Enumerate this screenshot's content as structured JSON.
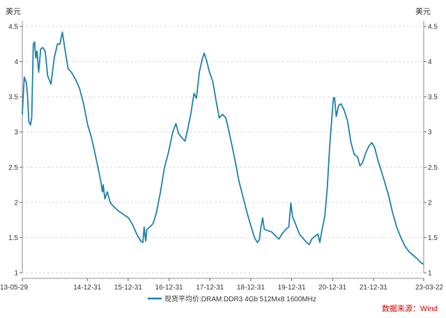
{
  "chart_data": {
    "type": "line",
    "unit_left": "美元",
    "unit_right": "美元",
    "ylim": [
      1,
      4.5
    ],
    "y_ticks": [
      "1",
      "1.5",
      "2",
      "2.5",
      "3",
      "3.5",
      "4",
      "4.5"
    ],
    "x_ticks": [
      {
        "t": 0.0,
        "label": "13-05-29"
      },
      {
        "t": 1.59,
        "label": "14-12-31"
      },
      {
        "t": 2.59,
        "label": "15-12-31"
      },
      {
        "t": 3.59,
        "label": "16-12-31"
      },
      {
        "t": 4.59,
        "label": "17-12-31"
      },
      {
        "t": 5.59,
        "label": "18-12-31"
      },
      {
        "t": 6.59,
        "label": "19-12-31"
      },
      {
        "t": 7.59,
        "label": "20-12-31"
      },
      {
        "t": 8.59,
        "label": "21-12-31"
      },
      {
        "t": 9.82,
        "label": "23-03-22"
      }
    ],
    "series": [
      {
        "name": "现货平均价:DRAM:DDR3 4Gb 512Mx8 1600MHz",
        "color": "#1a7fa8",
        "points": [
          [
            0.0,
            3.25
          ],
          [
            0.03,
            3.6
          ],
          [
            0.05,
            3.78
          ],
          [
            0.1,
            3.7
          ],
          [
            0.13,
            3.5
          ],
          [
            0.16,
            3.15
          ],
          [
            0.2,
            3.1
          ],
          [
            0.23,
            3.2
          ],
          [
            0.27,
            4.25
          ],
          [
            0.3,
            4.28
          ],
          [
            0.33,
            4.05
          ],
          [
            0.36,
            4.15
          ],
          [
            0.4,
            3.85
          ],
          [
            0.45,
            4.18
          ],
          [
            0.5,
            4.2
          ],
          [
            0.56,
            4.15
          ],
          [
            0.62,
            3.8
          ],
          [
            0.7,
            3.68
          ],
          [
            0.78,
            4.05
          ],
          [
            0.86,
            4.25
          ],
          [
            0.92,
            4.25
          ],
          [
            0.98,
            4.42
          ],
          [
            1.05,
            4.15
          ],
          [
            1.12,
            3.9
          ],
          [
            1.2,
            3.85
          ],
          [
            1.3,
            3.75
          ],
          [
            1.4,
            3.62
          ],
          [
            1.5,
            3.4
          ],
          [
            1.6,
            3.1
          ],
          [
            1.68,
            2.95
          ],
          [
            1.76,
            2.75
          ],
          [
            1.85,
            2.5
          ],
          [
            1.92,
            2.3
          ],
          [
            1.96,
            2.15
          ],
          [
            1.98,
            2.25
          ],
          [
            2.02,
            2.05
          ],
          [
            2.08,
            2.15
          ],
          [
            2.15,
            2.0
          ],
          [
            2.22,
            1.95
          ],
          [
            2.35,
            1.88
          ],
          [
            2.5,
            1.82
          ],
          [
            2.6,
            1.78
          ],
          [
            2.7,
            1.68
          ],
          [
            2.8,
            1.55
          ],
          [
            2.9,
            1.45
          ],
          [
            2.95,
            1.43
          ],
          [
            2.98,
            1.65
          ],
          [
            3.02,
            1.45
          ],
          [
            3.05,
            1.62
          ],
          [
            3.12,
            1.65
          ],
          [
            3.2,
            1.7
          ],
          [
            3.28,
            1.85
          ],
          [
            3.38,
            2.15
          ],
          [
            3.48,
            2.5
          ],
          [
            3.58,
            2.72
          ],
          [
            3.68,
            3.0
          ],
          [
            3.76,
            3.12
          ],
          [
            3.82,
            2.98
          ],
          [
            3.9,
            2.92
          ],
          [
            3.98,
            2.87
          ],
          [
            4.05,
            3.05
          ],
          [
            4.12,
            3.25
          ],
          [
            4.2,
            3.55
          ],
          [
            4.26,
            3.48
          ],
          [
            4.33,
            3.85
          ],
          [
            4.4,
            4.03
          ],
          [
            4.45,
            4.12
          ],
          [
            4.5,
            4.03
          ],
          [
            4.58,
            3.85
          ],
          [
            4.66,
            3.72
          ],
          [
            4.74,
            3.45
          ],
          [
            4.82,
            3.2
          ],
          [
            4.9,
            3.25
          ],
          [
            4.98,
            3.2
          ],
          [
            5.06,
            3.0
          ],
          [
            5.14,
            2.78
          ],
          [
            5.22,
            2.55
          ],
          [
            5.3,
            2.3
          ],
          [
            5.4,
            2.08
          ],
          [
            5.5,
            1.85
          ],
          [
            5.6,
            1.65
          ],
          [
            5.68,
            1.5
          ],
          [
            5.75,
            1.43
          ],
          [
            5.8,
            1.47
          ],
          [
            5.84,
            1.65
          ],
          [
            5.88,
            1.78
          ],
          [
            5.92,
            1.62
          ],
          [
            6.0,
            1.6
          ],
          [
            6.1,
            1.58
          ],
          [
            6.2,
            1.52
          ],
          [
            6.28,
            1.48
          ],
          [
            6.35,
            1.55
          ],
          [
            6.45,
            1.62
          ],
          [
            6.52,
            1.65
          ],
          [
            6.57,
            1.99
          ],
          [
            6.61,
            1.8
          ],
          [
            6.68,
            1.7
          ],
          [
            6.78,
            1.55
          ],
          [
            6.88,
            1.48
          ],
          [
            6.96,
            1.43
          ],
          [
            7.02,
            1.4
          ],
          [
            7.08,
            1.48
          ],
          [
            7.16,
            1.52
          ],
          [
            7.23,
            1.55
          ],
          [
            7.28,
            1.43
          ],
          [
            7.33,
            1.6
          ],
          [
            7.4,
            1.8
          ],
          [
            7.46,
            2.2
          ],
          [
            7.52,
            2.8
          ],
          [
            7.58,
            3.25
          ],
          [
            7.61,
            3.48
          ],
          [
            7.64,
            3.49
          ],
          [
            7.68,
            3.22
          ],
          [
            7.74,
            3.38
          ],
          [
            7.8,
            3.4
          ],
          [
            7.88,
            3.3
          ],
          [
            7.96,
            3.15
          ],
          [
            8.04,
            2.85
          ],
          [
            8.12,
            2.68
          ],
          [
            8.2,
            2.65
          ],
          [
            8.26,
            2.52
          ],
          [
            8.32,
            2.56
          ],
          [
            8.4,
            2.7
          ],
          [
            8.48,
            2.8
          ],
          [
            8.55,
            2.85
          ],
          [
            8.62,
            2.78
          ],
          [
            8.7,
            2.6
          ],
          [
            8.78,
            2.45
          ],
          [
            8.86,
            2.3
          ],
          [
            8.96,
            2.1
          ],
          [
            9.06,
            1.85
          ],
          [
            9.16,
            1.65
          ],
          [
            9.26,
            1.5
          ],
          [
            9.36,
            1.38
          ],
          [
            9.46,
            1.3
          ],
          [
            9.56,
            1.25
          ],
          [
            9.66,
            1.2
          ],
          [
            9.74,
            1.15
          ],
          [
            9.82,
            1.12
          ]
        ]
      }
    ],
    "legend": "bottom-center",
    "grid": true,
    "source": "数据来源：Wind"
  }
}
